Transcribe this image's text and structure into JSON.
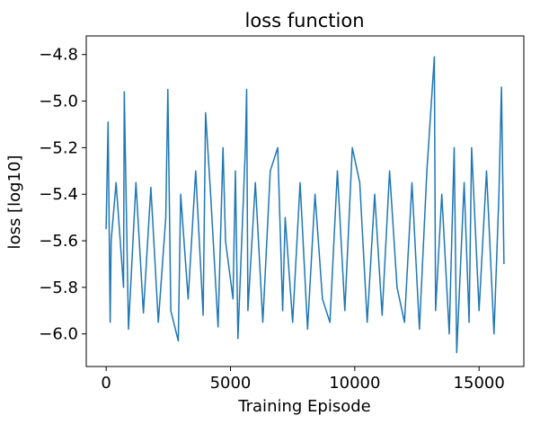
{
  "chart_data": {
    "type": "line",
    "title": "loss function",
    "xlabel": "Training Episode",
    "ylabel": "loss [log10]",
    "xlim": [
      -800,
      16800
    ],
    "ylim": [
      -6.14,
      -4.72
    ],
    "xticks": [
      0,
      5000,
      10000,
      15000
    ],
    "xtick_labels": [
      "0",
      "5000",
      "10000",
      "15000"
    ],
    "yticks": [
      -6.0,
      -5.8,
      -5.6,
      -5.4,
      -5.2,
      -5.0,
      -4.8
    ],
    "ytick_labels": [
      "−6.0",
      "−5.8",
      "−5.6",
      "−5.4",
      "−5.2",
      "−5.0",
      "−4.8"
    ],
    "grid": false,
    "legend": "none",
    "line_color": "#1f77b4",
    "series": [
      {
        "x": [
          0,
          80,
          160,
          200,
          400,
          700,
          730,
          900,
          1200,
          1500,
          1800,
          2100,
          2400,
          2480,
          2600,
          2900,
          3000,
          3300,
          3600,
          3900,
          4000,
          4200,
          4500,
          4700,
          4800,
          5100,
          5200,
          5300,
          5600,
          5650,
          5700,
          6000,
          6300,
          6600,
          6900,
          7100,
          7200,
          7500,
          7800,
          8100,
          8400,
          8700,
          9000,
          9300,
          9600,
          9900,
          10200,
          10500,
          10800,
          11100,
          11400,
          11700,
          12000,
          12300,
          12600,
          12900,
          13200,
          13250,
          13500,
          13800,
          14000,
          14100,
          14400,
          14600,
          14700,
          15000,
          15300,
          15600,
          15800,
          15900,
          16000
        ],
        "y": [
          -5.55,
          -5.09,
          -5.95,
          -5.6,
          -5.35,
          -5.8,
          -4.96,
          -5.98,
          -5.35,
          -5.91,
          -5.37,
          -5.95,
          -5.5,
          -4.95,
          -5.9,
          -6.03,
          -5.4,
          -5.85,
          -5.3,
          -5.92,
          -5.05,
          -5.4,
          -5.97,
          -5.2,
          -5.6,
          -5.85,
          -5.3,
          -6.02,
          -5.2,
          -4.95,
          -5.9,
          -5.35,
          -5.95,
          -5.3,
          -5.2,
          -5.9,
          -5.5,
          -5.95,
          -5.35,
          -5.98,
          -5.4,
          -5.85,
          -5.95,
          -5.3,
          -5.9,
          -5.2,
          -5.35,
          -5.95,
          -5.4,
          -5.92,
          -5.3,
          -5.8,
          -5.95,
          -5.35,
          -5.98,
          -5.3,
          -4.81,
          -5.9,
          -5.4,
          -6.0,
          -5.2,
          -6.08,
          -5.35,
          -5.95,
          -5.2,
          -5.9,
          -5.3,
          -6.0,
          -5.4,
          -4.94,
          -5.7
        ]
      }
    ]
  }
}
